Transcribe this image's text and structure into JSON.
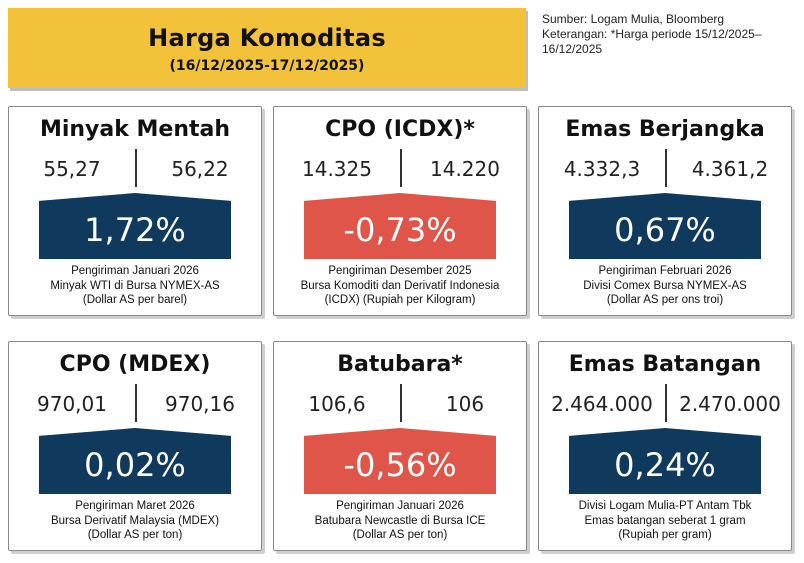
{
  "header": {
    "title": "Harga Komoditas",
    "period": "(16/12/2025-17/12/2025)"
  },
  "source": {
    "line1": "Sumber: Logam Mulia, Bloomberg",
    "line2": "Keterangan: *Harga periode 15/12/2025–16/12/2025"
  },
  "colors": {
    "banner": "#f2c23a",
    "up": "#0f3a5e",
    "down": "#e05549"
  },
  "cards": [
    {
      "name": "Minyak Mentah",
      "price_prev": "55,27",
      "price_curr": "56,22",
      "change": "1,72%",
      "direction": "up",
      "note1": "Pengiriman Januari 2026",
      "note2": "Minyak WTI di Bursa NYMEX-AS",
      "note3": "(Dollar AS per barel)"
    },
    {
      "name": "CPO (ICDX)*",
      "price_prev": "14.325",
      "price_curr": "14.220",
      "change": "-0,73%",
      "direction": "down",
      "note1": "Pengiriman Desember 2025",
      "note2": "Bursa Komoditi dan Derivatif Indonesia",
      "note3": "(ICDX) (Rupiah per Kilogram)"
    },
    {
      "name": "Emas Berjangka",
      "price_prev": "4.332,3",
      "price_curr": "4.361,2",
      "change": "0,67%",
      "direction": "up",
      "note1": "Pengiriman Februari 2026",
      "note2": "Divisi Comex Bursa NYMEX-AS",
      "note3": "(Dollar AS per ons troi)"
    },
    {
      "name": "CPO (MDEX)",
      "price_prev": "970,01",
      "price_curr": "970,16",
      "change": "0,02%",
      "direction": "up",
      "note1": "Pengiriman Maret 2026",
      "note2": "Bursa Derivatif Malaysia (MDEX)",
      "note3": "(Dollar AS per ton)"
    },
    {
      "name": "Batubara*",
      "price_prev": "106,6",
      "price_curr": "106",
      "change": "-0,56%",
      "direction": "down",
      "note1": "Pengiriman Januari 2026",
      "note2": "Batubara Newcastle di Bursa ICE",
      "note3": "(Dollar AS per ton)"
    },
    {
      "name": "Emas Batangan",
      "price_prev": "2.464.000",
      "price_curr": "2.470.000",
      "change": "0,24%",
      "direction": "up",
      "note1": "Divisi Logam Mulia-PT Antam Tbk",
      "note2": "Emas batangan seberat 1 gram",
      "note3": "(Rupiah per gram)"
    }
  ]
}
